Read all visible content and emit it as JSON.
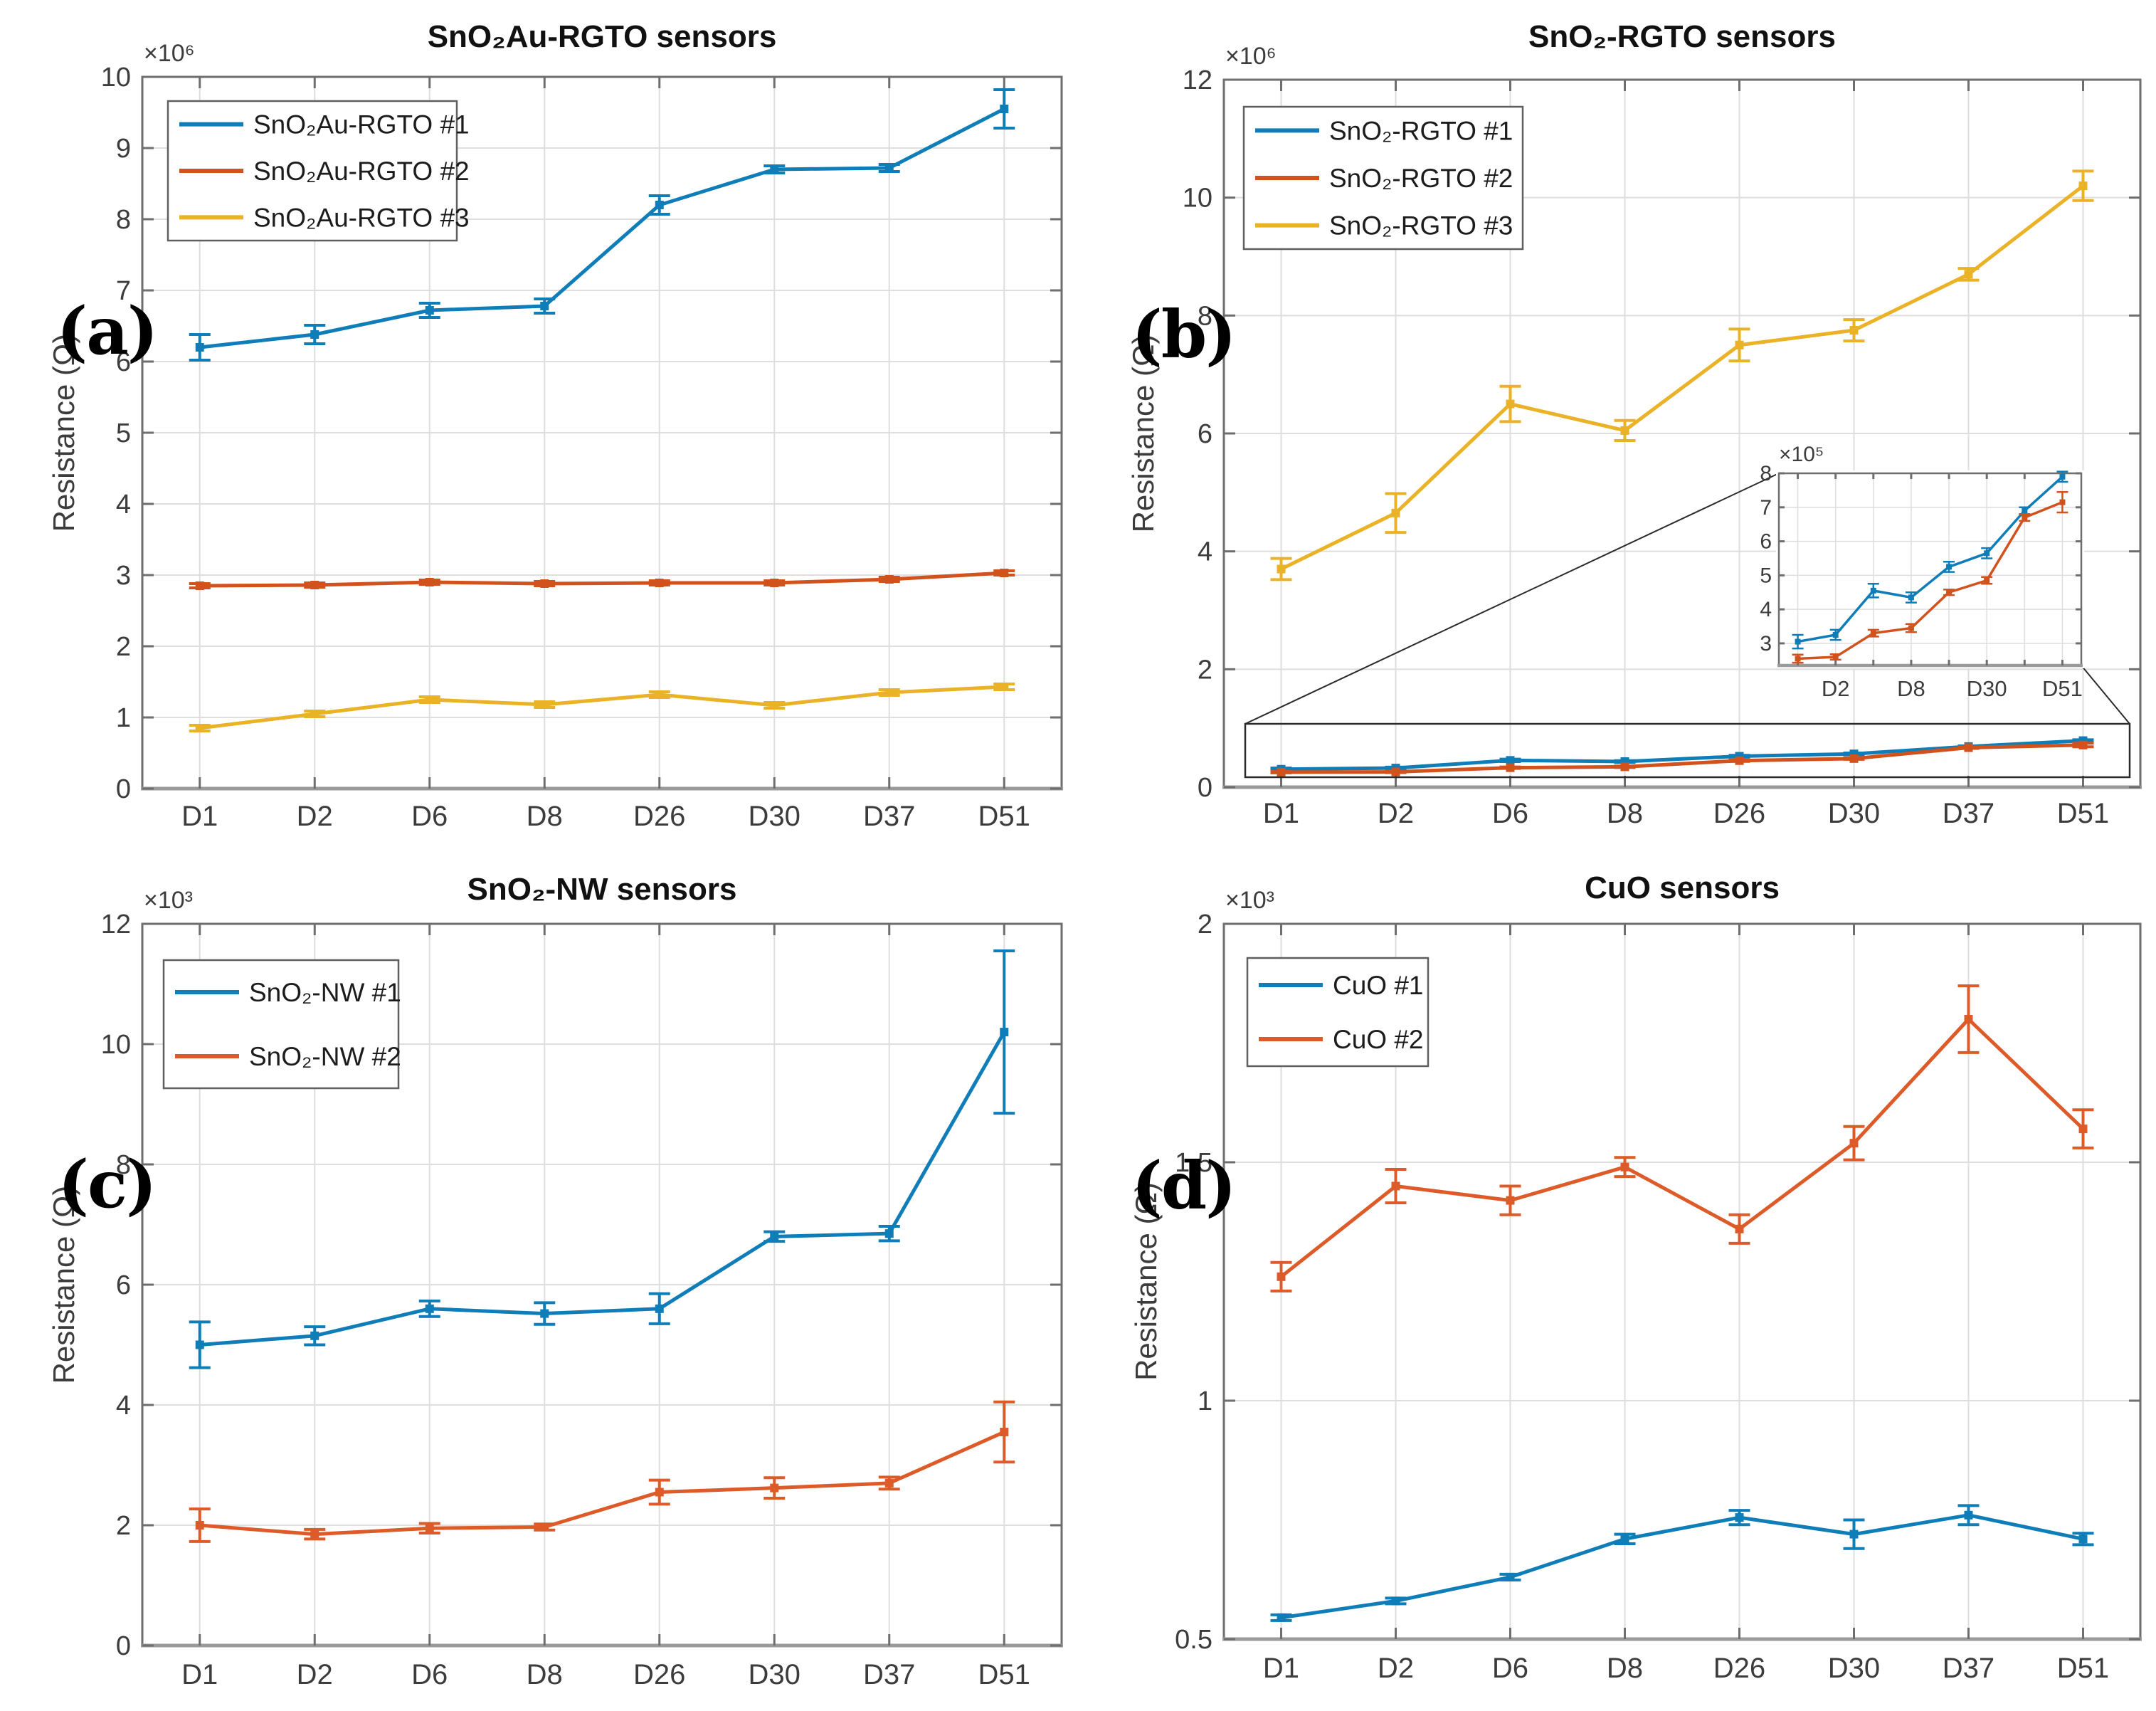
{
  "chart_data": [
    {
      "id": "a",
      "panel_label": "(a)",
      "type": "line",
      "title": "SnO₂Au-RGTO sensors",
      "ylabel": "Resistance (Ω)",
      "offset_text": "×10⁶",
      "unit_multiplier": 1000000,
      "categories": [
        "D1",
        "D2",
        "D6",
        "D8",
        "D26",
        "D30",
        "D37",
        "D51"
      ],
      "ylim": [
        0,
        10
      ],
      "yticks": [
        0,
        1,
        2,
        3,
        4,
        5,
        6,
        7,
        8,
        9,
        10
      ],
      "grid": true,
      "legend_position": "top-left",
      "series": [
        {
          "name": "SnO₂Au-RGTO #1",
          "color": "#0F7DB8",
          "values": [
            6.2,
            6.38,
            6.72,
            6.78,
            8.2,
            8.7,
            8.72,
            9.55
          ],
          "errors": [
            0.18,
            0.13,
            0.1,
            0.1,
            0.13,
            0.05,
            0.05,
            0.27
          ]
        },
        {
          "name": "SnO₂Au-RGTO #2",
          "color": "#D2521E",
          "values": [
            2.85,
            2.86,
            2.9,
            2.88,
            2.89,
            2.89,
            2.94,
            3.03
          ],
          "errors": [
            0.03,
            0.03,
            0.03,
            0.03,
            0.03,
            0.03,
            0.03,
            0.03
          ]
        },
        {
          "name": "SnO₂Au-RGTO #3",
          "color": "#EAB226",
          "values": [
            0.85,
            1.05,
            1.25,
            1.18,
            1.32,
            1.17,
            1.35,
            1.43
          ],
          "errors": [
            0.04,
            0.04,
            0.04,
            0.04,
            0.04,
            0.04,
            0.04,
            0.04
          ]
        }
      ]
    },
    {
      "id": "b",
      "panel_label": "(b)",
      "type": "line",
      "title": "SnO₂-RGTO sensors",
      "ylabel": "Resistance (Ω)",
      "offset_text": "×10⁶",
      "unit_multiplier": 1000000,
      "categories": [
        "D1",
        "D2",
        "D6",
        "D8",
        "D26",
        "D30",
        "D37",
        "D51"
      ],
      "ylim": [
        0,
        12
      ],
      "yticks": [
        0,
        2,
        4,
        6,
        8,
        10,
        12
      ],
      "grid": true,
      "legend_position": "top-left",
      "series": [
        {
          "name": "SnO₂-RGTO #1",
          "color": "#0F7DB8",
          "values": [
            0.305,
            0.325,
            0.455,
            0.435,
            0.525,
            0.565,
            0.69,
            0.79
          ],
          "errors": [
            0.02,
            0.015,
            0.02,
            0.015,
            0.015,
            0.015,
            0.01,
            0.015
          ]
        },
        {
          "name": "SnO₂-RGTO #2",
          "color": "#D2521E",
          "values": [
            0.255,
            0.26,
            0.33,
            0.345,
            0.45,
            0.485,
            0.67,
            0.715
          ],
          "errors": [
            0.012,
            0.012,
            0.012,
            0.012,
            0.012,
            0.012,
            0.012,
            0.03
          ]
        },
        {
          "name": "SnO₂-RGTO #3",
          "color": "#EAB226",
          "values": [
            3.7,
            4.65,
            6.5,
            6.05,
            7.5,
            7.75,
            8.7,
            10.2
          ],
          "errors": [
            0.18,
            0.33,
            0.3,
            0.17,
            0.27,
            0.18,
            0.1,
            0.25
          ]
        }
      ],
      "inset": {
        "offset_text": "×10⁵",
        "unit_multiplier": 100000,
        "categories": [
          "D1",
          "D2",
          "D6",
          "D8",
          "D26",
          "D30",
          "D37",
          "D51"
        ],
        "xticklabels": [
          "D2",
          "D8",
          "D30",
          "D51"
        ],
        "xticklabel_indices": [
          1,
          3,
          5,
          7
        ],
        "ylim": [
          2.35,
          8
        ],
        "yticks": [
          3,
          4,
          5,
          6,
          7,
          8
        ],
        "series": [
          {
            "name": "SnO₂-RGTO #1",
            "color": "#0F7DB8",
            "values": [
              3.05,
              3.25,
              4.55,
              4.35,
              5.25,
              5.65,
              6.9,
              7.9
            ],
            "errors": [
              0.2,
              0.15,
              0.2,
              0.15,
              0.15,
              0.15,
              0.1,
              0.15
            ]
          },
          {
            "name": "SnO₂-RGTO #2",
            "color": "#D2521E",
            "values": [
              2.55,
              2.6,
              3.3,
              3.45,
              4.5,
              4.85,
              6.7,
              7.15
            ],
            "errors": [
              0.12,
              0.08,
              0.1,
              0.12,
              0.08,
              0.1,
              0.1,
              0.3
            ]
          }
        ]
      }
    },
    {
      "id": "c",
      "panel_label": "(c)",
      "type": "line",
      "title": "SnO₂-NW sensors",
      "ylabel": "Resistance (Ω)",
      "offset_text": "×10³",
      "unit_multiplier": 1000,
      "categories": [
        "D1",
        "D2",
        "D6",
        "D8",
        "D26",
        "D30",
        "D37",
        "D51"
      ],
      "ylim": [
        0,
        12
      ],
      "yticks": [
        0,
        2,
        4,
        6,
        8,
        10,
        12
      ],
      "grid": true,
      "legend_position": "top-left",
      "series": [
        {
          "name": "SnO₂-NW #1",
          "color": "#0F7DB8",
          "values": [
            5.0,
            5.15,
            5.6,
            5.52,
            5.6,
            6.8,
            6.85,
            10.2
          ],
          "errors": [
            0.38,
            0.15,
            0.13,
            0.18,
            0.25,
            0.08,
            0.12,
            1.35
          ]
        },
        {
          "name": "SnO₂-NW #2",
          "color": "#DD5B28",
          "values": [
            2.0,
            1.85,
            1.95,
            1.97,
            2.55,
            2.62,
            2.7,
            3.55
          ],
          "errors": [
            0.27,
            0.08,
            0.08,
            0.05,
            0.2,
            0.17,
            0.1,
            0.5
          ]
        }
      ]
    },
    {
      "id": "d",
      "panel_label": "(d)",
      "type": "line",
      "title": "CuO sensors",
      "ylabel": "Resistance (Ω)",
      "offset_text": "×10³",
      "unit_multiplier": 1000,
      "categories": [
        "D1",
        "D2",
        "D6",
        "D8",
        "D26",
        "D30",
        "D37",
        "D51"
      ],
      "ylim": [
        0.5,
        2
      ],
      "yticks": [
        0.5,
        1,
        1.5,
        2
      ],
      "grid": true,
      "legend_position": "top-left",
      "series": [
        {
          "name": "CuO #1",
          "color": "#0F7DB8",
          "values": [
            0.545,
            0.58,
            0.63,
            0.71,
            0.755,
            0.72,
            0.76,
            0.71
          ],
          "errors": [
            0.006,
            0.006,
            0.006,
            0.01,
            0.015,
            0.03,
            0.02,
            0.012
          ]
        },
        {
          "name": "CuO #2",
          "color": "#DD5B28",
          "values": [
            1.26,
            1.45,
            1.42,
            1.49,
            1.36,
            1.54,
            1.8,
            1.57
          ],
          "errors": [
            0.03,
            0.035,
            0.03,
            0.02,
            0.03,
            0.035,
            0.07,
            0.04
          ]
        }
      ]
    }
  ]
}
